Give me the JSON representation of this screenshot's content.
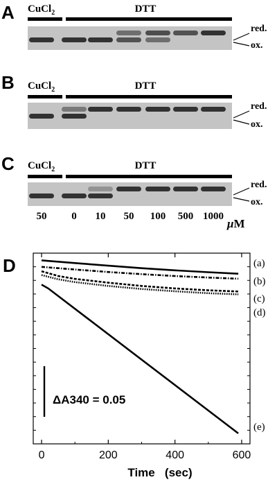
{
  "gel_panels": [
    {
      "letter": "A",
      "label_left": "CuCl",
      "label_left_sub": "2",
      "label_right": "DTT",
      "band_labels": [
        "red.",
        "ox."
      ],
      "bands": [
        {
          "ox": 1.0,
          "red": 0.0
        },
        {
          "ox": 1.0,
          "red": 0.0
        },
        {
          "ox": 1.0,
          "red": 0.0
        },
        {
          "ox": 0.7,
          "red": 0.45
        },
        {
          "ox": 0.45,
          "red": 0.75
        },
        {
          "ox": 0.0,
          "red": 0.7
        },
        {
          "ox": 0.0,
          "red": 1.0
        }
      ]
    },
    {
      "letter": "B",
      "label_left": "CuCl",
      "label_left_sub": "2",
      "label_right": "DTT",
      "band_labels": [
        "red.",
        "ox."
      ],
      "bands": [
        {
          "ox": 1.0,
          "red": 0.0
        },
        {
          "ox": 1.0,
          "red": 0.35
        },
        {
          "ox": 0.0,
          "red": 1.0
        },
        {
          "ox": 0.0,
          "red": 1.0
        },
        {
          "ox": 0.0,
          "red": 1.0
        },
        {
          "ox": 0.0,
          "red": 1.0
        },
        {
          "ox": 0.0,
          "red": 1.0
        }
      ]
    },
    {
      "letter": "C",
      "label_left": "CuCl",
      "label_left_sub": "2",
      "label_right": "DTT",
      "band_labels": [
        "red.",
        "ox."
      ],
      "bands": [
        {
          "ox": 1.0,
          "red": 0.0
        },
        {
          "ox": 1.0,
          "red": 0.0
        },
        {
          "ox": 1.0,
          "red": 0.1
        },
        {
          "ox": 0.0,
          "red": 1.0
        },
        {
          "ox": 0.0,
          "red": 1.0
        },
        {
          "ox": 0.0,
          "red": 1.0
        },
        {
          "ox": 0.0,
          "red": 1.0
        }
      ]
    }
  ],
  "concentrations": [
    "50",
    "0",
    "10",
    "50",
    "100",
    "500",
    "1000"
  ],
  "conc_unit_mu": "μ",
  "conc_unit_m": "M",
  "chart_data": {
    "type": "line",
    "panel_letter": "D",
    "xlabel": "Time   (sec)",
    "xlim": [
      -25,
      625
    ],
    "xticks": [
      "0",
      "200",
      "400",
      "600"
    ],
    "ylim": [
      0,
      1
    ],
    "scale_bar_label": "ΔA340 = 0.05",
    "series": [
      {
        "name": "(a)",
        "x": [
          0,
          100,
          200,
          300,
          400,
          500,
          590
        ],
        "y": [
          0.962,
          0.948,
          0.934,
          0.921,
          0.91,
          0.9,
          0.892
        ],
        "style": "solid"
      },
      {
        "name": "(b)",
        "x": [
          0,
          100,
          200,
          300,
          400,
          500,
          590
        ],
        "y": [
          0.928,
          0.914,
          0.901,
          0.89,
          0.88,
          0.872,
          0.866
        ],
        "style": "dashdot"
      },
      {
        "name": "(c)",
        "x": [
          0,
          50,
          100,
          200,
          300,
          400,
          500,
          590
        ],
        "y": [
          0.905,
          0.88,
          0.865,
          0.845,
          0.828,
          0.815,
          0.805,
          0.799
        ],
        "style": "dashed"
      },
      {
        "name": "(d)",
        "x": [
          0,
          50,
          100,
          200,
          300,
          400,
          500,
          590
        ],
        "y": [
          0.885,
          0.863,
          0.848,
          0.828,
          0.812,
          0.8,
          0.79,
          0.784
        ],
        "style": "dotted"
      },
      {
        "name": "(e)",
        "x": [
          0,
          20,
          590
        ],
        "y": [
          0.835,
          0.815,
          0.055
        ],
        "style": "solid"
      }
    ]
  }
}
